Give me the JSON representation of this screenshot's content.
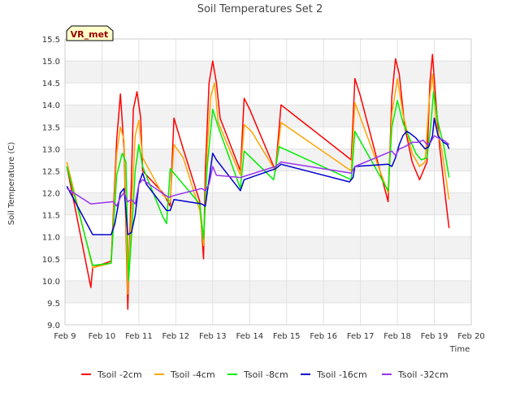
{
  "chart_data": {
    "type": "line",
    "title": "Soil Temperatures Set 2",
    "xlabel": "Time",
    "ylabel": "Soil Temperature (C)",
    "xlim": [
      9,
      20
    ],
    "ylim": [
      9.0,
      15.5
    ],
    "yticks": [
      9.0,
      9.5,
      10.0,
      10.5,
      11.0,
      11.5,
      12.0,
      12.5,
      13.0,
      13.5,
      14.0,
      14.5,
      15.0,
      15.5
    ],
    "xticks": [
      {
        "v": 9,
        "label": "Feb 9"
      },
      {
        "v": 10,
        "label": "Feb 10"
      },
      {
        "v": 11,
        "label": "Feb 11"
      },
      {
        "v": 12,
        "label": "Feb 12"
      },
      {
        "v": 13,
        "label": "Feb 13"
      },
      {
        "v": 14,
        "label": "Feb 14"
      },
      {
        "v": 15,
        "label": "Feb 15"
      },
      {
        "v": 16,
        "label": "Feb 16"
      },
      {
        "v": 17,
        "label": "Feb 17"
      },
      {
        "v": 18,
        "label": "Feb 18"
      },
      {
        "v": 19,
        "label": "Feb 19"
      },
      {
        "v": 20,
        "label": "Feb 20"
      }
    ],
    "annotation": "VR_met",
    "legend_position": "bottom",
    "series": [
      {
        "name": "Tsoil -2cm",
        "color": "#ff0000",
        "points": [
          [
            9.05,
            12.6
          ],
          [
            9.7,
            9.85
          ],
          [
            9.75,
            10.3
          ],
          [
            10.25,
            10.45
          ],
          [
            10.4,
            13.2
          ],
          [
            10.5,
            14.25
          ],
          [
            10.6,
            13.0
          ],
          [
            10.7,
            9.35
          ],
          [
            10.75,
            10.8
          ],
          [
            10.85,
            13.9
          ],
          [
            10.95,
            14.3
          ],
          [
            11.05,
            13.7
          ],
          [
            11.1,
            12.5
          ],
          [
            11.65,
            12.0
          ],
          [
            11.85,
            11.7
          ],
          [
            11.95,
            13.7
          ],
          [
            12.2,
            13.0
          ],
          [
            12.65,
            11.8
          ],
          [
            12.75,
            10.5
          ],
          [
            12.8,
            12.5
          ],
          [
            12.9,
            14.5
          ],
          [
            13.0,
            15.0
          ],
          [
            13.1,
            14.5
          ],
          [
            13.2,
            13.7
          ],
          [
            13.75,
            12.5
          ],
          [
            13.85,
            14.15
          ],
          [
            14.0,
            13.9
          ],
          [
            14.7,
            12.5
          ],
          [
            14.85,
            14.0
          ],
          [
            16.75,
            12.75
          ],
          [
            16.85,
            14.6
          ],
          [
            17.0,
            14.2
          ],
          [
            17.75,
            11.8
          ],
          [
            17.85,
            14.2
          ],
          [
            17.95,
            15.05
          ],
          [
            18.05,
            14.7
          ],
          [
            18.2,
            13.5
          ],
          [
            18.4,
            12.7
          ],
          [
            18.5,
            12.5
          ],
          [
            18.6,
            12.3
          ],
          [
            18.7,
            12.5
          ],
          [
            18.8,
            12.7
          ],
          [
            18.88,
            14.5
          ],
          [
            18.95,
            15.15
          ],
          [
            19.05,
            14.0
          ],
          [
            19.15,
            13.0
          ],
          [
            19.3,
            11.9
          ],
          [
            19.4,
            11.2
          ]
        ]
      },
      {
        "name": "Tsoil -4cm",
        "color": "#ffa500",
        "points": [
          [
            9.05,
            12.7
          ],
          [
            9.75,
            10.3
          ],
          [
            10.25,
            10.4
          ],
          [
            10.4,
            12.9
          ],
          [
            10.5,
            13.5
          ],
          [
            10.6,
            13.2
          ],
          [
            10.7,
            9.7
          ],
          [
            10.8,
            11.6
          ],
          [
            10.9,
            13.3
          ],
          [
            11.0,
            13.65
          ],
          [
            11.1,
            12.8
          ],
          [
            11.65,
            11.95
          ],
          [
            11.85,
            11.8
          ],
          [
            11.95,
            13.1
          ],
          [
            12.2,
            12.8
          ],
          [
            12.65,
            11.6
          ],
          [
            12.75,
            10.8
          ],
          [
            12.85,
            13.0
          ],
          [
            12.95,
            14.2
          ],
          [
            13.05,
            14.5
          ],
          [
            13.15,
            13.6
          ],
          [
            13.75,
            12.4
          ],
          [
            13.85,
            13.55
          ],
          [
            14.05,
            13.4
          ],
          [
            14.7,
            12.5
          ],
          [
            14.85,
            13.6
          ],
          [
            16.75,
            12.5
          ],
          [
            16.85,
            14.05
          ],
          [
            17.75,
            12.0
          ],
          [
            17.85,
            13.8
          ],
          [
            18.0,
            14.6
          ],
          [
            18.15,
            13.8
          ],
          [
            18.4,
            12.9
          ],
          [
            18.6,
            12.6
          ],
          [
            18.75,
            12.7
          ],
          [
            18.85,
            14.0
          ],
          [
            18.95,
            14.7
          ],
          [
            19.05,
            13.6
          ],
          [
            19.2,
            13.0
          ],
          [
            19.4,
            11.85
          ]
        ]
      },
      {
        "name": "Tsoil -8cm",
        "color": "#00ee00",
        "points": [
          [
            9.05,
            12.6
          ],
          [
            9.75,
            10.35
          ],
          [
            10.25,
            10.4
          ],
          [
            10.4,
            12.4
          ],
          [
            10.55,
            12.9
          ],
          [
            10.65,
            12.7
          ],
          [
            10.72,
            10.0
          ],
          [
            10.8,
            11.0
          ],
          [
            10.9,
            12.5
          ],
          [
            11.0,
            13.1
          ],
          [
            11.1,
            12.6
          ],
          [
            11.65,
            11.45
          ],
          [
            11.75,
            11.3
          ],
          [
            11.85,
            12.55
          ],
          [
            12.65,
            11.75
          ],
          [
            12.75,
            10.95
          ],
          [
            12.85,
            12.6
          ],
          [
            13.0,
            13.9
          ],
          [
            13.15,
            13.5
          ],
          [
            13.75,
            12.1
          ],
          [
            13.85,
            12.95
          ],
          [
            14.65,
            12.3
          ],
          [
            14.8,
            13.05
          ],
          [
            16.75,
            12.3
          ],
          [
            16.85,
            13.4
          ],
          [
            17.75,
            12.05
          ],
          [
            17.85,
            13.5
          ],
          [
            18.0,
            14.1
          ],
          [
            18.15,
            13.6
          ],
          [
            18.5,
            12.9
          ],
          [
            18.65,
            12.75
          ],
          [
            18.8,
            12.8
          ],
          [
            18.9,
            13.5
          ],
          [
            18.98,
            14.3
          ],
          [
            19.1,
            13.6
          ],
          [
            19.25,
            13.1
          ],
          [
            19.4,
            12.35
          ]
        ]
      },
      {
        "name": "Tsoil -16cm",
        "color": "#0000cc",
        "points": [
          [
            9.05,
            12.15
          ],
          [
            9.75,
            11.05
          ],
          [
            10.25,
            11.05
          ],
          [
            10.35,
            11.3
          ],
          [
            10.5,
            12.0
          ],
          [
            10.6,
            12.1
          ],
          [
            10.7,
            11.05
          ],
          [
            10.8,
            11.1
          ],
          [
            10.9,
            11.5
          ],
          [
            11.0,
            12.2
          ],
          [
            11.1,
            12.45
          ],
          [
            11.2,
            12.2
          ],
          [
            11.75,
            11.6
          ],
          [
            11.85,
            11.6
          ],
          [
            11.95,
            11.85
          ],
          [
            12.7,
            11.75
          ],
          [
            12.8,
            11.7
          ],
          [
            12.9,
            12.3
          ],
          [
            13.0,
            12.9
          ],
          [
            13.1,
            12.75
          ],
          [
            13.75,
            12.05
          ],
          [
            13.85,
            12.3
          ],
          [
            14.7,
            12.55
          ],
          [
            14.85,
            12.65
          ],
          [
            16.7,
            12.25
          ],
          [
            16.8,
            12.35
          ],
          [
            16.85,
            12.6
          ],
          [
            17.75,
            12.65
          ],
          [
            17.85,
            12.6
          ],
          [
            17.95,
            12.8
          ],
          [
            18.05,
            13.1
          ],
          [
            18.15,
            13.3
          ],
          [
            18.25,
            13.4
          ],
          [
            18.35,
            13.35
          ],
          [
            18.5,
            13.25
          ],
          [
            18.65,
            13.1
          ],
          [
            18.75,
            13.0
          ],
          [
            18.85,
            13.05
          ],
          [
            18.95,
            13.3
          ],
          [
            19.0,
            13.7
          ],
          [
            19.1,
            13.3
          ],
          [
            19.25,
            13.15
          ],
          [
            19.35,
            13.1
          ],
          [
            19.4,
            13.0
          ]
        ]
      },
      {
        "name": "Tsoil -32cm",
        "color": "#9933ee",
        "points": [
          [
            9.05,
            12.1
          ],
          [
            9.7,
            11.75
          ],
          [
            10.3,
            11.8
          ],
          [
            10.4,
            11.7
          ],
          [
            10.5,
            11.9
          ],
          [
            10.6,
            12.0
          ],
          [
            10.7,
            11.8
          ],
          [
            10.8,
            11.85
          ],
          [
            10.9,
            11.75
          ],
          [
            11.0,
            12.2
          ],
          [
            11.1,
            12.3
          ],
          [
            11.8,
            11.9
          ],
          [
            12.0,
            11.95
          ],
          [
            12.7,
            12.1
          ],
          [
            12.8,
            12.05
          ],
          [
            12.9,
            12.2
          ],
          [
            13.0,
            12.6
          ],
          [
            13.1,
            12.4
          ],
          [
            13.75,
            12.35
          ],
          [
            14.7,
            12.6
          ],
          [
            14.85,
            12.7
          ],
          [
            16.75,
            12.45
          ],
          [
            16.85,
            12.6
          ],
          [
            17.85,
            12.95
          ],
          [
            17.95,
            12.85
          ],
          [
            18.05,
            13.0
          ],
          [
            18.2,
            13.05
          ],
          [
            18.4,
            13.15
          ],
          [
            18.55,
            13.15
          ],
          [
            18.7,
            13.2
          ],
          [
            18.8,
            13.1
          ],
          [
            18.9,
            13.15
          ],
          [
            19.0,
            13.3
          ],
          [
            19.1,
            13.25
          ],
          [
            19.25,
            13.2
          ],
          [
            19.4,
            13.1
          ]
        ]
      }
    ]
  }
}
